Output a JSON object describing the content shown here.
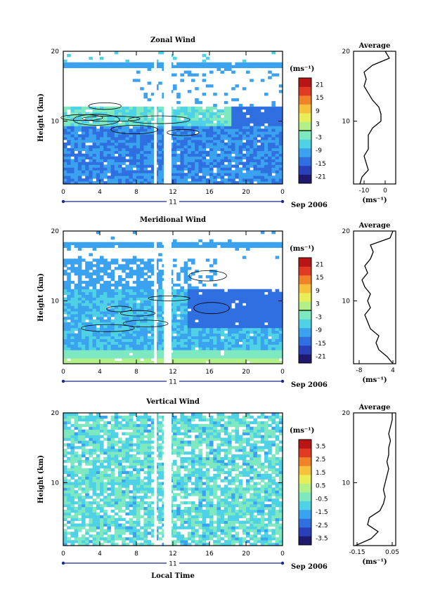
{
  "colors": {
    "wind_scale": [
      "#1f1a6e",
      "#2a3fb8",
      "#2f6fe0",
      "#3aa2ee",
      "#4fd1e6",
      "#7ee8c0",
      "#b2f08a",
      "#e8ee58",
      "#f6c23e",
      "#f0822a",
      "#e03a22",
      "#b81616"
    ]
  },
  "common": {
    "time_ticks": [
      "0",
      "4",
      "8",
      "12",
      "16",
      "20",
      "0"
    ],
    "day_label": "11",
    "date_label": "Sep 2006",
    "xlabel": "Local Time",
    "unit_label": "(ms⁻¹)",
    "height_label": "Height (km)",
    "average_title": "Average"
  },
  "chart_data": [
    {
      "type": "heatmap",
      "title": "Zonal Wind",
      "ylabel": "Height (km)",
      "xlabel": "",
      "x_ticks": [
        "0",
        "4",
        "8",
        "12",
        "16",
        "20",
        "0"
      ],
      "y_ticks": [
        "10",
        "20"
      ],
      "ylim": [
        1,
        20
      ],
      "colorbar": {
        "label": "(ms⁻¹)",
        "ticks": [
          "-21",
          "-15",
          "-9",
          "-3",
          "3",
          "9",
          "15",
          "21"
        ],
        "range": [
          -24,
          24
        ]
      },
      "average_profile": {
        "title": "Average",
        "xlabel": "(ms⁻¹)",
        "x_ticks": [
          "-10",
          "0"
        ],
        "xlim": [
          -15,
          5
        ],
        "y_ticks": [
          "10",
          "20"
        ],
        "heights": [
          1,
          2,
          3,
          4,
          5,
          6,
          7,
          8,
          9,
          10,
          11,
          12,
          13,
          14,
          15,
          16,
          17,
          18,
          19,
          20
        ],
        "values": [
          -12,
          -11,
          -8,
          -9,
          -10,
          -8,
          -8,
          -8,
          -6,
          -2,
          -2,
          -3,
          -6,
          -8,
          -10,
          -9,
          -10,
          -6,
          2,
          0
        ]
      }
    },
    {
      "type": "heatmap",
      "title": "Meridional Wind",
      "ylabel": "Height (km)",
      "xlabel": "",
      "x_ticks": [
        "0",
        "4",
        "8",
        "12",
        "16",
        "20",
        "0"
      ],
      "y_ticks": [
        "10",
        "20"
      ],
      "ylim": [
        1,
        20
      ],
      "colorbar": {
        "label": "(ms⁻¹)",
        "ticks": [
          "-21",
          "-15",
          "-9",
          "-3",
          "3",
          "9",
          "15",
          "21"
        ],
        "range": [
          -24,
          24
        ]
      },
      "average_profile": {
        "title": "Average",
        "xlabel": "(ms⁻¹)",
        "x_ticks": [
          "-8",
          "4"
        ],
        "xlim": [
          -10,
          5
        ],
        "y_ticks": [
          "10",
          "20"
        ],
        "heights": [
          1,
          2,
          3,
          4,
          5,
          6,
          7,
          8,
          9,
          10,
          11,
          12,
          13,
          14,
          15,
          16,
          17,
          18,
          19,
          20
        ],
        "values": [
          4,
          2,
          -1,
          -2,
          -1,
          -4,
          -5,
          -6,
          -4,
          -5,
          -4,
          -6,
          -7,
          -5,
          -6,
          -4,
          -3,
          -4,
          3,
          4
        ]
      }
    },
    {
      "type": "heatmap",
      "title": "Vertical Wind",
      "ylabel": "Height (km)",
      "xlabel": "Local Time",
      "x_ticks": [
        "0",
        "4",
        "8",
        "12",
        "16",
        "20",
        "0"
      ],
      "y_ticks": [
        "10",
        "20"
      ],
      "ylim": [
        1,
        20
      ],
      "colorbar": {
        "label": "(ms⁻¹)",
        "ticks": [
          "-3.5",
          "-2.5",
          "-1.5",
          "-0.5",
          "0.5",
          "1.5",
          "2.5",
          "3.5"
        ],
        "range": [
          -4,
          4
        ]
      },
      "average_profile": {
        "title": "Average",
        "xlabel": "(ms⁻¹)",
        "x_ticks": [
          "-0.15",
          "0.05"
        ],
        "xlim": [
          -0.17,
          0.07
        ],
        "y_ticks": [
          "10",
          "20"
        ],
        "heights": [
          1,
          2,
          3,
          4,
          5,
          6,
          7,
          8,
          9,
          10,
          11,
          12,
          13,
          14,
          15,
          16,
          17,
          18,
          19,
          20
        ],
        "values": [
          -0.16,
          -0.07,
          -0.03,
          -0.09,
          -0.08,
          -0.02,
          0.0,
          0.01,
          0.0,
          0.01,
          0.02,
          0.03,
          0.02,
          0.03,
          0.03,
          0.04,
          0.03,
          0.04,
          0.05,
          0.05
        ]
      }
    }
  ]
}
